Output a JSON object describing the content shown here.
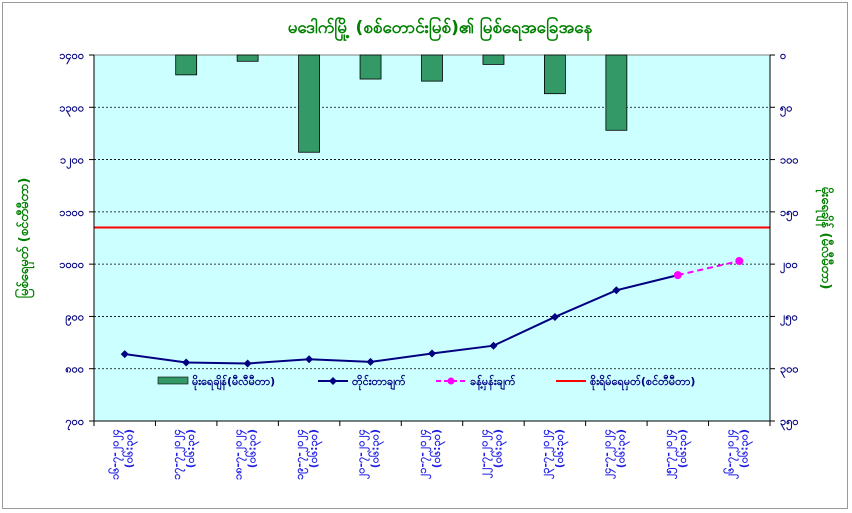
{
  "chart_data": {
    "type": "bar+line",
    "title": "မဒေါက်မြို့ (စစ်တောင်းမြစ်)၏ မြစ်ရေအခြေအနေ",
    "ylabel_left": "မြစ်ရေမှတ် (စင်တီမီတာ)",
    "ylabel_right": "မိုးရေချိန် (မီလီမီတာ)",
    "ylim_left": [
      700,
      1400
    ],
    "yticks_left": [
      "၁၄၀၀",
      "၁၃၀၀",
      "၁၂၀၀",
      "၁၁၀၀",
      "၁၀၀၀",
      "၉၀၀",
      "၈၀၀",
      "၇၀၀"
    ],
    "yticks_left_values": [
      1400,
      1300,
      1200,
      1100,
      1000,
      900,
      800,
      700
    ],
    "ylim_right": [
      0,
      350
    ],
    "yticks_right": [
      "၀",
      "၅၀",
      "၁၀၀",
      "၁၅၀",
      "၂၀၀",
      "၂၅၀",
      "၃၀၀",
      "၃၅၀"
    ],
    "yticks_right_values": [
      0,
      50,
      100,
      150,
      200,
      250,
      300,
      350
    ],
    "categories": [
      "၁၆-၇-၂၀၂၄ (၀၆:၃၀)",
      "၁၇-၇-၂၀၂၄ (၀၆:၃၀)",
      "၁၈-၇-၂၀၂၄ (၀၆:၃၀)",
      "၁၉-၇-၂၀၂၄ (၀၆:၃၀)",
      "၂၀-၇-၂၀၂၄ (၀၆:၃၀)",
      "၂၁-၇-၂၀၂၄ (၀၆:၃၀)",
      "၂၂-၇-၂၀၂၄ (၀၆:၃၀)",
      "၂၃-၇-၂၀၂၄ (၀၆:၃၀)",
      "၂၄-၇-၂၀၂၄ (၀၆:၃၀)",
      "၂၅-၇-၂၀၂၄ (၀၆:၃၀)",
      "၂၆-၇-၂၀၂၄ (၀၆:၃၀)"
    ],
    "series": [
      {
        "name": "မိုးရေချိန်(မီလီမီတာ)",
        "type": "bar",
        "axis": "right",
        "color": "#339966",
        "values": [
          0,
          19,
          6,
          93,
          23,
          25,
          9,
          37,
          72,
          null,
          null
        ]
      },
      {
        "name": "တိုင်းတာချက်",
        "type": "line",
        "axis": "left",
        "color": "#000080",
        "values": [
          828,
          812,
          810,
          818,
          813,
          829,
          844,
          899,
          950,
          979,
          null
        ]
      },
      {
        "name": "ခန့်မှန်းချက်",
        "type": "line-dashed",
        "axis": "left",
        "color": "#ff00ff",
        "values": [
          null,
          null,
          null,
          null,
          null,
          null,
          null,
          null,
          null,
          979,
          1006
        ]
      },
      {
        "name": "စိုးရိမ်ရေမှတ်(စင်တီမီတာ)",
        "type": "hline",
        "axis": "left",
        "color": "#ff0000",
        "value": 1070
      }
    ],
    "grid": true,
    "legend": "bottom"
  }
}
